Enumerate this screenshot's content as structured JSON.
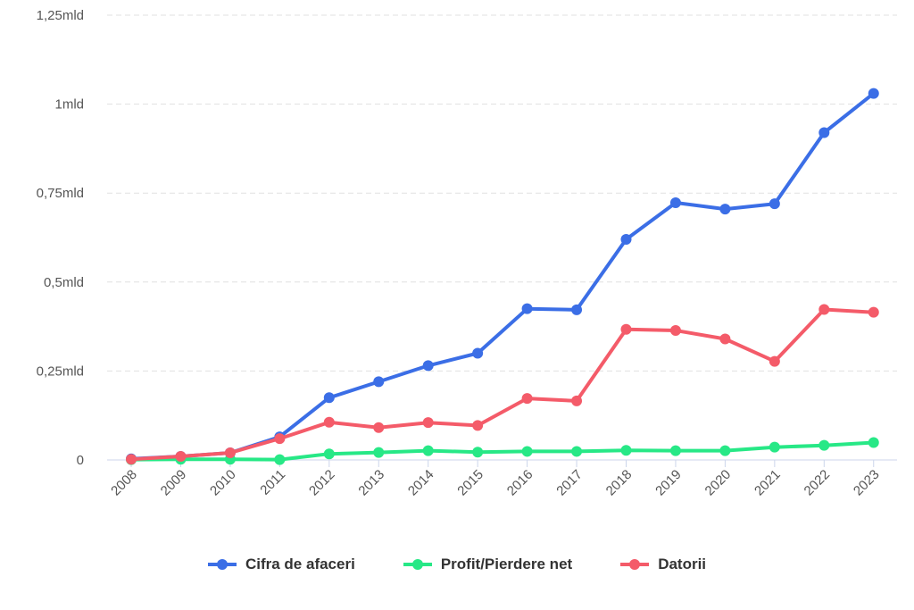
{
  "chart_data": {
    "type": "line",
    "x": [
      "2008",
      "2009",
      "2010",
      "2011",
      "2012",
      "2013",
      "2014",
      "2015",
      "2016",
      "2017",
      "2018",
      "2019",
      "2020",
      "2021",
      "2022",
      "2023"
    ],
    "y_ticks": [
      {
        "value": 0,
        "label": "0"
      },
      {
        "value": 0.25,
        "label": "0,25mld"
      },
      {
        "value": 0.5,
        "label": "0,5mld"
      },
      {
        "value": 0.75,
        "label": "0,75mld"
      },
      {
        "value": 1.0,
        "label": "1mld"
      },
      {
        "value": 1.25,
        "label": "1,25mld"
      }
    ],
    "ylim": [
      0,
      1.25
    ],
    "grid": true,
    "legend_position": "bottom",
    "series": [
      {
        "name": "Cifra de afaceri",
        "color": "#3b6ee6",
        "values": [
          0.003,
          0.01,
          0.02,
          0.065,
          0.175,
          0.22,
          0.265,
          0.3,
          0.425,
          0.422,
          0.62,
          0.723,
          0.705,
          0.72,
          0.92,
          1.03
        ]
      },
      {
        "name": "Profit/Pierdere net",
        "color": "#27e886",
        "values": [
          0.001,
          0.002,
          0.002,
          0.001,
          0.017,
          0.021,
          0.026,
          0.022,
          0.024,
          0.024,
          0.027,
          0.026,
          0.026,
          0.036,
          0.041,
          0.049
        ]
      },
      {
        "name": "Datorii",
        "color": "#f45b69",
        "values": [
          0.002,
          0.01,
          0.02,
          0.06,
          0.106,
          0.091,
          0.105,
          0.097,
          0.173,
          0.166,
          0.367,
          0.364,
          0.34,
          0.277,
          0.423,
          0.415
        ]
      }
    ]
  }
}
